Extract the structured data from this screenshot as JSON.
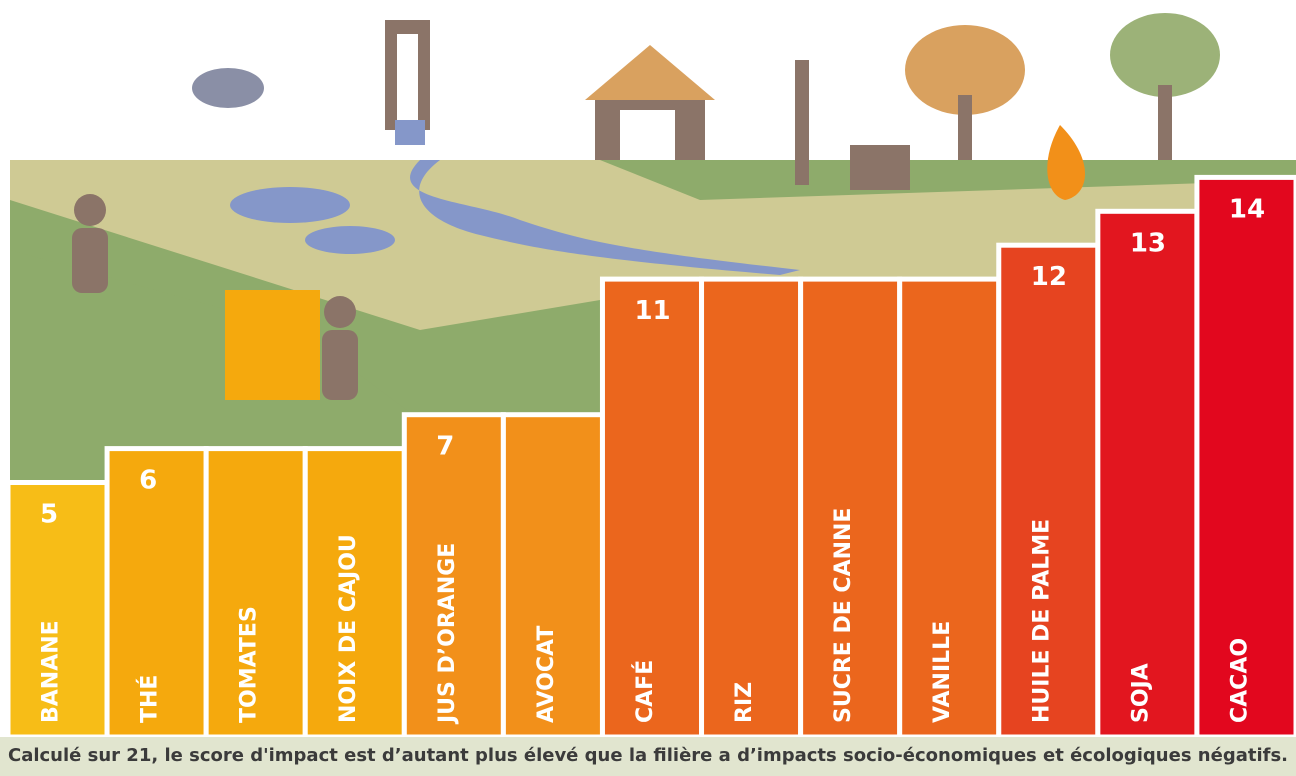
{
  "chart_data": {
    "type": "bar",
    "categories": [
      "BANANE",
      "THÉ",
      "TOMATES",
      "NOIX DE CAJOU",
      "JUS D’ORANGE",
      "AVOCAT",
      "CAFÉ",
      "RIZ",
      "SUCRE DE CANNE",
      "VANILLE",
      "HUILE DE PALME",
      "SOJA",
      "CACAO"
    ],
    "values": [
      5,
      6,
      6,
      6,
      7,
      7,
      11,
      11,
      11,
      11,
      12,
      13,
      14
    ],
    "colors": [
      "#f7bd17",
      "#f5a90d",
      "#f5a90d",
      "#f5a90d",
      "#f2901a",
      "#f2901a",
      "#eb661d",
      "#eb661d",
      "#eb661d",
      "#eb661d",
      "#e64420",
      "#e2161f",
      "#e2071e"
    ],
    "caption": "Calculé sur 21, le score d'impact est d’autant plus élevé que la filière a d’impacts socio-économiques et écologiques négatifs."
  }
}
